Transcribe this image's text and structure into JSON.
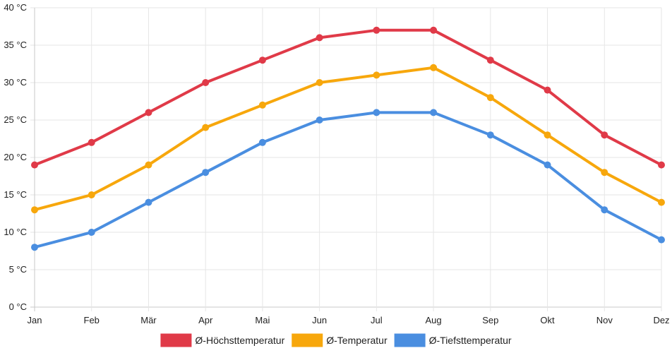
{
  "chart_data": {
    "type": "line",
    "categories": [
      "Jan",
      "Feb",
      "Mär",
      "Apr",
      "Mai",
      "Jun",
      "Jul",
      "Aug",
      "Sep",
      "Okt",
      "Nov",
      "Dez"
    ],
    "y_ticks": [
      "0 °C",
      "5 °C",
      "10 °C",
      "15 °C",
      "20 °C",
      "25 °C",
      "30 °C",
      "35 °C",
      "40 °C"
    ],
    "ylim": [
      0,
      40
    ],
    "y_unit": "°C",
    "grid": true,
    "legend_position": "bottom-center",
    "series": [
      {
        "name": "Ø-Höchsttemperatur",
        "color": "#e03a48",
        "values": [
          19,
          22,
          26,
          30,
          33,
          36,
          37,
          37,
          33,
          29,
          23,
          19
        ]
      },
      {
        "name": "Ø-Temperatur",
        "color": "#f7a70c",
        "values": [
          13,
          15,
          19,
          24,
          27,
          30,
          31,
          32,
          28,
          23,
          18,
          14
        ]
      },
      {
        "name": "Ø-Tiefsttemperatur",
        "color": "#4a8ee0",
        "values": [
          8,
          10,
          14,
          18,
          22,
          25,
          26,
          26,
          23,
          19,
          13,
          9
        ]
      }
    ]
  }
}
